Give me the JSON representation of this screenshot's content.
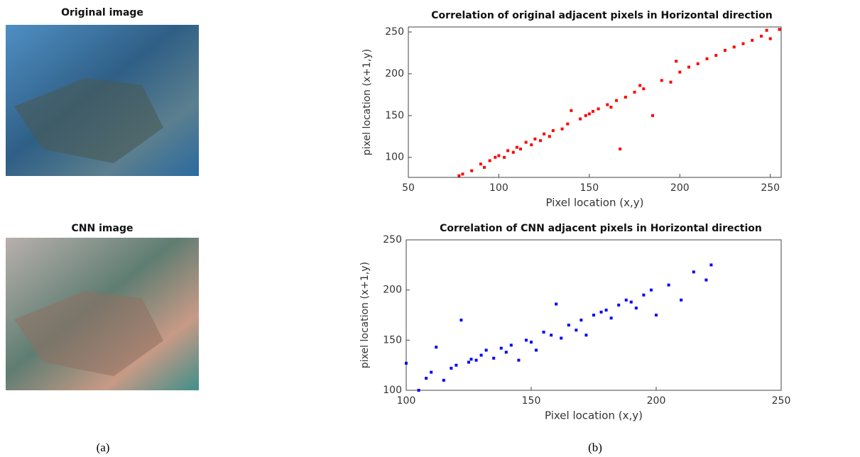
{
  "panels": {
    "top_image_title": "Original image",
    "bottom_image_title": "CNN image",
    "caption_a": "(a)",
    "caption_b": "(b)"
  },
  "chart_data": [
    {
      "type": "scatter",
      "title": "Correlation of original adjacent pixels in Horizontal direction",
      "x_label": "Pixel location (x,y)",
      "y_label": "pixel location (x+1,y)",
      "color": "#ff0000",
      "xlim": [
        50,
        256
      ],
      "ylim": [
        76,
        256
      ],
      "xticks": [
        50,
        100,
        150,
        200,
        250
      ],
      "yticks": [
        100,
        150,
        200,
        250
      ],
      "grid": false,
      "x": [
        78,
        80,
        85,
        90,
        92,
        95,
        98,
        100,
        103,
        105,
        108,
        110,
        112,
        115,
        118,
        120,
        123,
        125,
        128,
        130,
        135,
        138,
        140,
        145,
        148,
        150,
        152,
        155,
        160,
        162,
        165,
        167,
        170,
        175,
        178,
        180,
        185,
        190,
        195,
        198,
        200,
        205,
        210,
        215,
        220,
        225,
        230,
        235,
        240,
        245,
        248,
        250,
        255
      ],
      "values": [
        78,
        80,
        84,
        92,
        88,
        96,
        100,
        102,
        100,
        108,
        106,
        112,
        110,
        118,
        115,
        122,
        120,
        128,
        125,
        132,
        134,
        140,
        156,
        146,
        150,
        152,
        155,
        158,
        163,
        160,
        168,
        110,
        172,
        178,
        186,
        182,
        150,
        192,
        190,
        215,
        202,
        208,
        212,
        218,
        222,
        228,
        232,
        236,
        240,
        245,
        252,
        242,
        253
      ]
    },
    {
      "type": "scatter",
      "title": "Correlation of CNN adjacent pixels in Horizontal direction",
      "x_label": "Pixel location (x,y)",
      "y_label": "pixel location (x+1,y)",
      "color": "#0000ff",
      "xlim": [
        100,
        250
      ],
      "ylim": [
        100,
        250
      ],
      "xticks": [
        100,
        150,
        200,
        250
      ],
      "yticks": [
        100,
        150,
        200,
        250
      ],
      "grid": false,
      "x": [
        100,
        105,
        108,
        110,
        112,
        115,
        118,
        120,
        122,
        125,
        126,
        128,
        130,
        132,
        135,
        138,
        140,
        142,
        145,
        148,
        150,
        152,
        155,
        158,
        160,
        162,
        165,
        168,
        170,
        172,
        175,
        178,
        180,
        182,
        185,
        188,
        190,
        192,
        195,
        198,
        200,
        205,
        210,
        215,
        220,
        222
      ],
      "values": [
        127,
        100,
        112,
        118,
        143,
        110,
        122,
        125,
        170,
        128,
        131,
        130,
        135,
        140,
        132,
        142,
        138,
        145,
        130,
        150,
        148,
        140,
        158,
        155,
        186,
        152,
        165,
        160,
        170,
        155,
        175,
        178,
        180,
        172,
        185,
        190,
        188,
        182,
        195,
        200,
        175,
        205,
        190,
        218,
        210,
        225
      ]
    }
  ]
}
